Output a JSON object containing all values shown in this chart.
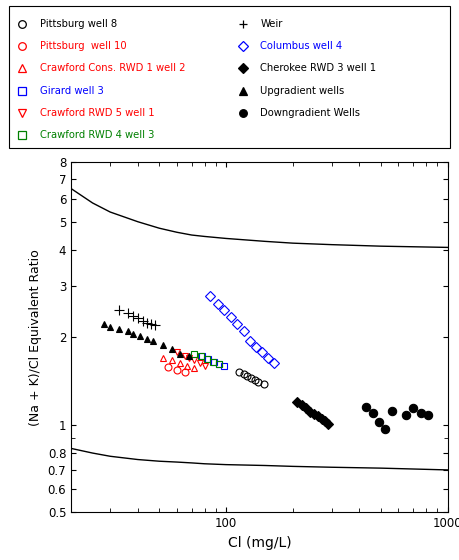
{
  "xlabel": "Cl (mg/L)",
  "ylabel": "(Na + K)/Cl Equivalent Ratio",
  "xlim": [
    20,
    1000
  ],
  "ylim": [
    0.5,
    8
  ],
  "curve1_x": [
    20,
    25,
    30,
    40,
    50,
    60,
    70,
    80,
    100,
    150,
    200,
    300,
    500,
    1000
  ],
  "curve1_y": [
    6.5,
    5.8,
    5.4,
    5.0,
    4.75,
    4.6,
    4.5,
    4.45,
    4.38,
    4.28,
    4.22,
    4.17,
    4.12,
    4.08
  ],
  "curve2_y": [
    0.83,
    0.8,
    0.78,
    0.76,
    0.75,
    0.745,
    0.74,
    0.735,
    0.73,
    0.725,
    0.72,
    0.715,
    0.71,
    0.7
  ],
  "pittsburg8": {
    "x": [
      115,
      120,
      125,
      130,
      135,
      140,
      148
    ],
    "y": [
      1.52,
      1.5,
      1.47,
      1.45,
      1.43,
      1.41,
      1.38
    ],
    "color": "black",
    "marker": "o",
    "facecolor": "none",
    "ms": 5
  },
  "pittsburg10": {
    "x": [
      55,
      60,
      65
    ],
    "y": [
      1.58,
      1.55,
      1.52
    ],
    "color": "red",
    "marker": "o",
    "facecolor": "none",
    "ms": 5
  },
  "crawford_cons": {
    "x": [
      52,
      57,
      62,
      67,
      72
    ],
    "y": [
      1.7,
      1.67,
      1.63,
      1.6,
      1.57
    ],
    "color": "red",
    "marker": "^",
    "facecolor": "none",
    "ms": 5
  },
  "girard": {
    "x": [
      78,
      83,
      88,
      93,
      98
    ],
    "y": [
      1.72,
      1.68,
      1.65,
      1.62,
      1.6
    ],
    "color": "blue",
    "marker": "s",
    "facecolor": "none",
    "ms": 5
  },
  "crawford_rwd5": {
    "x": [
      60,
      65,
      68,
      72,
      76,
      80
    ],
    "y": [
      1.78,
      1.73,
      1.7,
      1.67,
      1.63,
      1.6
    ],
    "color": "red",
    "marker": "v",
    "facecolor": "none",
    "ms": 5
  },
  "crawford_rwd4": {
    "x": [
      72,
      77,
      82,
      87,
      93
    ],
    "y": [
      1.75,
      1.72,
      1.68,
      1.65,
      1.62
    ],
    "color": "green",
    "marker": "s",
    "facecolor": "none",
    "ms": 5
  },
  "weir": {
    "x": [
      33,
      36,
      38,
      40,
      42,
      44,
      46,
      48
    ],
    "y": [
      2.48,
      2.42,
      2.37,
      2.33,
      2.28,
      2.25,
      2.22,
      2.2
    ],
    "color": "black",
    "marker": "+",
    "facecolor": "black",
    "ms": 7
  },
  "columbus4": {
    "x": [
      85,
      92,
      98,
      105,
      112,
      120,
      128,
      136,
      145,
      155,
      165
    ],
    "y": [
      2.78,
      2.6,
      2.48,
      2.35,
      2.22,
      2.1,
      1.95,
      1.85,
      1.78,
      1.7,
      1.63
    ],
    "color": "blue",
    "marker": "D",
    "facecolor": "none",
    "ms": 5
  },
  "cherokee": {
    "x": [
      210,
      220,
      230,
      240,
      250,
      260,
      270,
      280,
      290
    ],
    "y": [
      1.2,
      1.17,
      1.14,
      1.11,
      1.09,
      1.07,
      1.05,
      1.03,
      1.01
    ],
    "color": "black",
    "marker": "D",
    "facecolor": "black",
    "ms": 5
  },
  "upgradient": {
    "x": [
      28,
      30,
      33,
      36,
      38,
      41,
      44,
      47,
      52,
      57,
      62,
      68
    ],
    "y": [
      2.22,
      2.18,
      2.14,
      2.1,
      2.05,
      2.02,
      1.98,
      1.95,
      1.88,
      1.82,
      1.76,
      1.72
    ],
    "color": "black",
    "marker": "^",
    "facecolor": "black",
    "ms": 5
  },
  "downgradient": {
    "x": [
      430,
      460,
      490,
      520,
      560,
      650,
      700,
      760,
      820
    ],
    "y": [
      1.15,
      1.1,
      1.02,
      0.97,
      1.12,
      1.08,
      1.14,
      1.1,
      1.08
    ],
    "color": "black",
    "marker": "o",
    "facecolor": "black",
    "ms": 6
  },
  "legend_items": [
    {
      "label": "Pittsburg well 8",
      "color": "black",
      "marker": "o",
      "facecolor": "none"
    },
    {
      "label": "Pittsburg  well 10",
      "color": "red",
      "marker": "o",
      "facecolor": "none"
    },
    {
      "label": "Crawford Cons. RWD 1 well 2",
      "color": "red",
      "marker": "^",
      "facecolor": "none"
    },
    {
      "label": "Girard well 3",
      "color": "blue",
      "marker": "s",
      "facecolor": "none"
    },
    {
      "label": "Crawford RWD 5 well 1",
      "color": "red",
      "marker": "v",
      "facecolor": "none"
    },
    {
      "label": "Crawford RWD 4 well 3",
      "color": "green",
      "marker": "s",
      "facecolor": "none"
    },
    {
      "label": "Weir",
      "color": "black",
      "marker": "+",
      "facecolor": "black"
    },
    {
      "label": "Columbus well 4",
      "color": "blue",
      "marker": "D",
      "facecolor": "none"
    },
    {
      "label": "Cherokee RWD 3 well 1",
      "color": "black",
      "marker": "D",
      "facecolor": "black"
    },
    {
      "label": "Upgradient wells",
      "color": "black",
      "marker": "^",
      "facecolor": "black"
    },
    {
      "label": "Downgradient Wells",
      "color": "black",
      "marker": "o",
      "facecolor": "black"
    }
  ]
}
